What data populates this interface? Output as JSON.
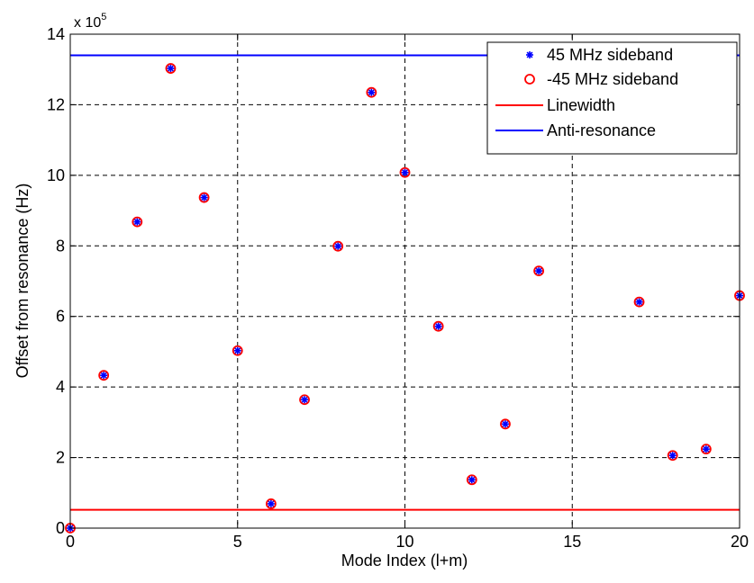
{
  "chart_data": {
    "type": "scatter",
    "xlabel": "Mode Index (l+m)",
    "ylabel": "Offset from resonance (Hz)",
    "exponent_label": "x 10",
    "exponent_power": "5",
    "xlim": [
      0,
      20
    ],
    "ylim": [
      0,
      14
    ],
    "x_ticks": [
      0,
      5,
      10,
      15,
      20
    ],
    "x_tick_labels": [
      "0",
      "5",
      "10",
      "15",
      "20"
    ],
    "y_ticks": [
      0,
      2,
      4,
      6,
      8,
      10,
      12,
      14
    ],
    "y_tick_labels": [
      "0",
      "2",
      "4",
      "6",
      "8",
      "10",
      "12",
      "14"
    ],
    "grid": true,
    "legend_position": "top-right",
    "x": [
      0,
      1,
      2,
      3,
      4,
      5,
      6,
      7,
      8,
      9,
      10,
      11,
      12,
      13,
      14,
      17,
      18,
      19,
      20
    ],
    "series": [
      {
        "name": "45 MHz sideband",
        "kind": "marker",
        "marker": "star",
        "color": "#0000ff",
        "values": [
          0.0,
          4.33,
          8.68,
          13.03,
          9.37,
          5.03,
          0.69,
          3.64,
          7.99,
          12.35,
          10.08,
          5.72,
          1.37,
          2.95,
          7.29,
          6.41,
          2.06,
          2.24,
          6.59
        ]
      },
      {
        "name": "-45 MHz sideband",
        "kind": "marker",
        "marker": "circle",
        "color": "#ff0000",
        "values": [
          0.0,
          4.33,
          8.68,
          13.03,
          9.37,
          5.03,
          0.69,
          3.64,
          7.99,
          12.35,
          10.08,
          5.72,
          1.37,
          2.95,
          7.29,
          6.41,
          2.06,
          2.24,
          6.59
        ]
      },
      {
        "name": "Linewidth",
        "kind": "hline",
        "color": "#ff0000",
        "value": 0.52
      },
      {
        "name": "Anti-resonance",
        "kind": "hline",
        "color": "#0000ff",
        "value": 13.4
      }
    ]
  }
}
